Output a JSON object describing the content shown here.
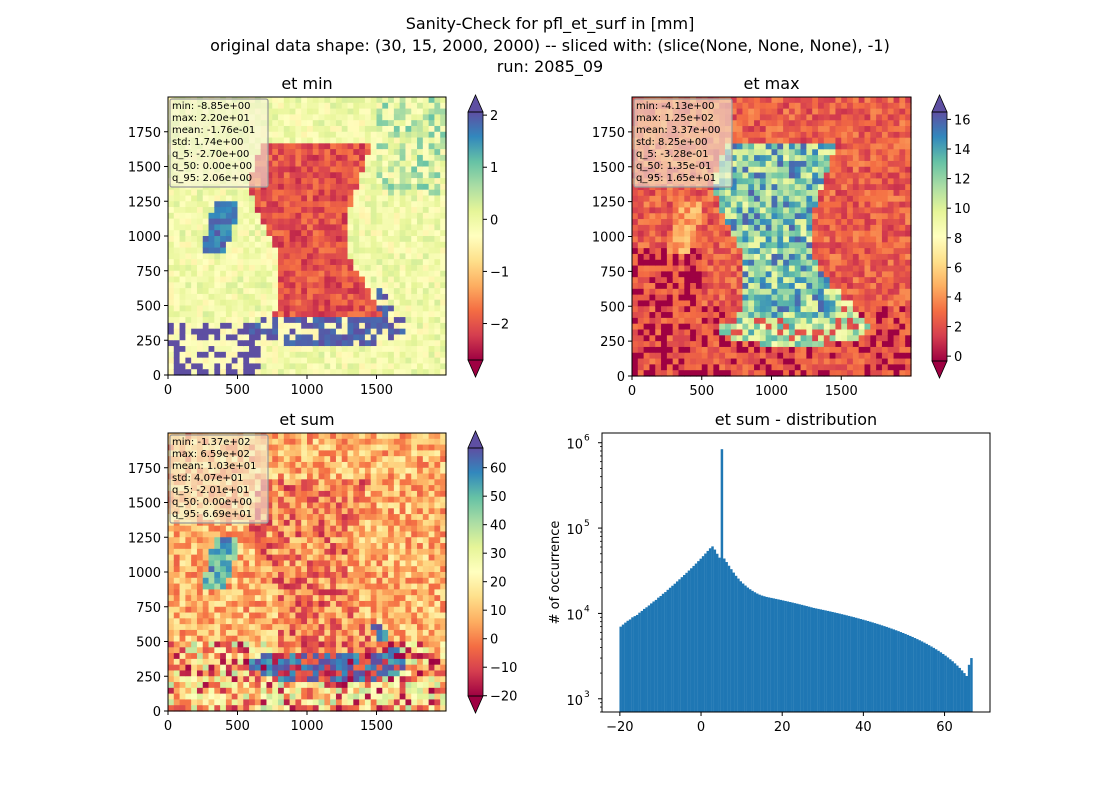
{
  "header": {
    "title_line1": "Sanity-Check for pfl_et_surf in [mm]",
    "title_line2": "original data shape: (30, 15, 2000, 2000) -- sliced with: (slice(None, None, None), -1)",
    "title_line3": "run: 2085_09"
  },
  "colors": {
    "hist_bar": "#1f77b4",
    "colormap": "Spectral",
    "under": "#9e0142",
    "over": "#5e4fa2"
  },
  "chart_data": [
    {
      "type": "heatmap",
      "title": "et min",
      "x_ticks": [
        "0",
        "500",
        "1000",
        "1500"
      ],
      "y_ticks": [
        "0",
        "250",
        "500",
        "750",
        "1000",
        "1250",
        "1500",
        "1750"
      ],
      "xlim": [
        0,
        2000
      ],
      "ylim": [
        0,
        2000
      ],
      "colorbar": {
        "vmin": -2.7,
        "vmax": 2.06,
        "ticks": [
          -2,
          -1,
          0,
          1,
          2
        ],
        "tick_labels": [
          "−2",
          "−1",
          "0",
          "1",
          "2"
        ],
        "extend": "both"
      },
      "stats": [
        "min: -8.85e+00",
        "max: 2.20e+01",
        "mean: -1.76e-01",
        "std: 1.74e+00",
        "q_5: -2.70e+00",
        "q_50: 0.00e+00",
        "q_95: 2.06e+00"
      ]
    },
    {
      "type": "heatmap",
      "title": "et max",
      "x_ticks": [
        "0",
        "500",
        "1000",
        "1500"
      ],
      "y_ticks": [
        "0",
        "250",
        "500",
        "750",
        "1000",
        "1250",
        "1500",
        "1750"
      ],
      "xlim": [
        0,
        2000
      ],
      "ylim": [
        0,
        2000
      ],
      "colorbar": {
        "vmin": -0.328,
        "vmax": 16.5,
        "ticks": [
          0,
          2,
          4,
          6,
          8,
          10,
          12,
          14,
          16
        ],
        "tick_labels": [
          "0",
          "2",
          "4",
          "6",
          "8",
          "10",
          "12",
          "14",
          "16"
        ],
        "extend": "both"
      },
      "stats": [
        "min: -4.13e+00",
        "max: 1.25e+02",
        "mean: 3.37e+00",
        "std: 8.25e+00",
        "q_5: -3.28e-01",
        "q_50: 1.35e-01",
        "q_95: 1.65e+01"
      ]
    },
    {
      "type": "heatmap",
      "title": "et sum",
      "x_ticks": [
        "0",
        "500",
        "1000",
        "1500"
      ],
      "y_ticks": [
        "0",
        "250",
        "500",
        "750",
        "1000",
        "1250",
        "1500",
        "1750"
      ],
      "xlim": [
        0,
        2000
      ],
      "ylim": [
        0,
        2000
      ],
      "colorbar": {
        "vmin": -20.1,
        "vmax": 66.9,
        "ticks": [
          -20,
          -10,
          0,
          10,
          20,
          30,
          40,
          50,
          60
        ],
        "tick_labels": [
          "−20",
          "−10",
          "0",
          "10",
          "20",
          "30",
          "40",
          "50",
          "60"
        ],
        "extend": "both"
      },
      "stats": [
        "min: -1.37e+02",
        "max: 6.59e+02",
        "mean: 1.03e+01",
        "std: 4.07e+01",
        "q_5: -2.01e+01",
        "q_50: 0.00e+00",
        "q_95: 6.69e+01"
      ]
    },
    {
      "type": "bar",
      "title": "et sum - distribution",
      "xlabel": "",
      "ylabel": "# of occurrence",
      "yscale": "log",
      "xlim": [
        -24.4,
        71.2
      ],
      "ylim": [
        700,
        1300000
      ],
      "x_ticks": [
        -20,
        0,
        20,
        40,
        60
      ],
      "x_tick_labels": [
        "−20",
        "0",
        "20",
        "40",
        "60"
      ],
      "y_ticks": [
        1000,
        10000,
        100000,
        1000000
      ],
      "y_tick_labels": [
        "10",
        "10",
        "10",
        "10"
      ],
      "y_tick_exponents": [
        "3",
        "4",
        "5",
        "6"
      ],
      "bin_edges": [
        -20.1,
        66.9
      ],
      "values": [
        7000,
        7400,
        7800,
        8200,
        8500,
        9000,
        9300,
        9600,
        10200,
        10700,
        11300,
        11800,
        12400,
        13100,
        13800,
        14400,
        15300,
        16000,
        17000,
        17800,
        18900,
        20000,
        21100,
        22300,
        23700,
        25100,
        26600,
        28200,
        29900,
        31800,
        33800,
        36000,
        38400,
        41000,
        43800,
        46900,
        50300,
        54000,
        58000,
        61000,
        56000,
        50000,
        45000,
        840000,
        44000,
        40000,
        36200,
        33000,
        30100,
        27600,
        25600,
        23800,
        22400,
        21200,
        20100,
        19200,
        18400,
        17700,
        17100,
        16600,
        16200,
        15900,
        15600,
        15400,
        15200,
        15000,
        14800,
        14600,
        14400,
        14200,
        14000,
        13800,
        13600,
        13400,
        13200,
        13000,
        12800,
        12600,
        12400,
        12200,
        12000,
        11800,
        11600,
        11450,
        11300,
        11150,
        11000,
        10850,
        10700,
        10550,
        10400,
        10250,
        10100,
        9950,
        9800,
        9650,
        9500,
        9350,
        9200,
        9050,
        8900,
        8750,
        8600,
        8450,
        8300,
        8150,
        8000,
        7850,
        7700,
        7550,
        7400,
        7250,
        7100,
        6950,
        6800,
        6650,
        6500,
        6350,
        6200,
        6050,
        5900,
        5750,
        5600,
        5450,
        5300,
        5150,
        5000,
        4850,
        4700,
        4550,
        4400,
        4250,
        4100,
        3950,
        3800,
        3650,
        3500,
        3350,
        3200,
        3050,
        2900,
        2750,
        2600,
        2450,
        2300,
        2150,
        2000,
        1850,
        2500,
        3000
      ]
    }
  ]
}
